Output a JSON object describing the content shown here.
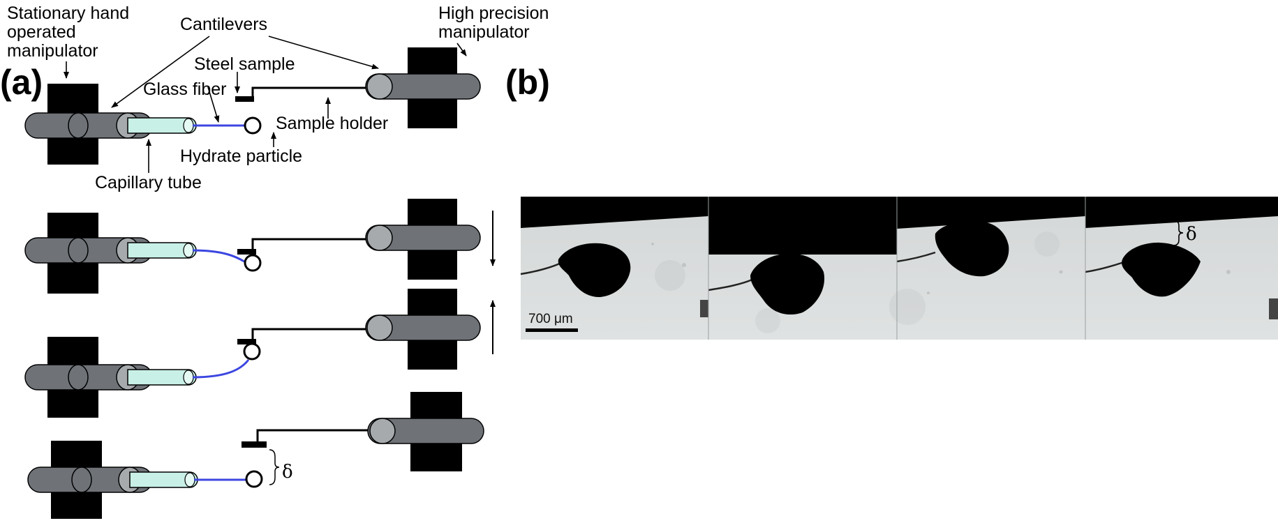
{
  "panels": {
    "a": "(a)",
    "b": "(b)"
  },
  "labels": {
    "stationary_manipulator": [
      "Stationary hand",
      "operated",
      "manipulator"
    ],
    "high_precision_manipulator": [
      "High precision",
      "manipulator"
    ],
    "cantilevers": "Cantilevers",
    "steel_sample": "Steel sample",
    "glass_fiber": "Glass fiber",
    "sample_holder": "Sample holder",
    "hydrate_particle": "Hydrate particle",
    "capillary_tube": "Capillary tube",
    "delta": "δ"
  },
  "scale_bar": {
    "label": "700 μm"
  },
  "colors": {
    "manipulator_block": "#000000",
    "cantilever_dark": "#6f7378",
    "cantilever_light": "#a6aaad",
    "capillary_tube": "#c8f0e6",
    "glass_fiber": "#3c46e0",
    "micrograph_bg": "#d9dcdc",
    "micrograph_top": "#000000"
  },
  "movement_arrows": [
    "down",
    "up"
  ]
}
